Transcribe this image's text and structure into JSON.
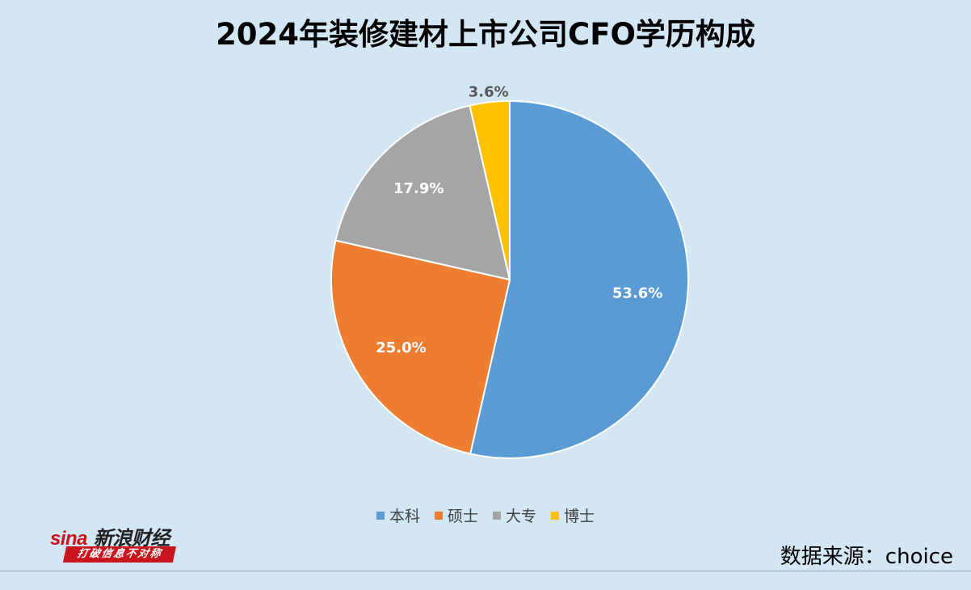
{
  "chart_data": {
    "type": "pie",
    "title": "2024年装修建材上市公司CFO学历构成",
    "categories": [
      "本科",
      "硕士",
      "大专",
      "博士"
    ],
    "values": [
      53.6,
      25.0,
      17.9,
      3.6
    ],
    "labels": [
      "53.6%",
      "25.0%",
      "17.9%",
      "3.6%"
    ],
    "colors": [
      "#5b9bd5",
      "#ed7d31",
      "#a5a5a5",
      "#ffc000"
    ],
    "start_angle": "12 o'clock",
    "direction": "clockwise",
    "legend_position": "bottom"
  },
  "source": "数据来源：choice",
  "logo": {
    "wordmark_latin": "sina",
    "wordmark_cn": "新浪财经",
    "slogan": "打破信息不对称"
  }
}
